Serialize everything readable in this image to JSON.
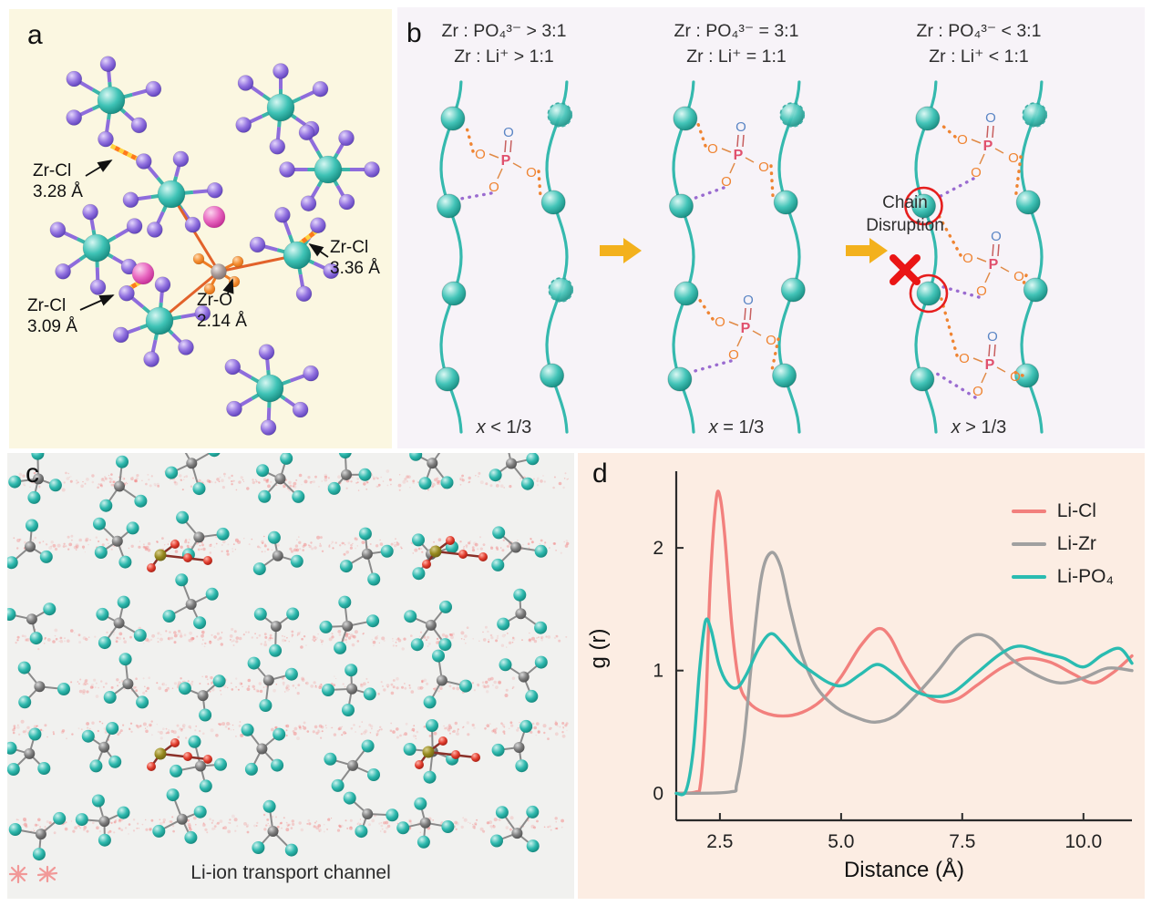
{
  "panels": {
    "a": {
      "label": "a",
      "annotations": [
        {
          "label": "Zr-Cl",
          "distance": "3.28 Å"
        },
        {
          "label": "Zr-Cl",
          "distance": "3.36 Å"
        },
        {
          "label": "Zr-Cl",
          "distance": "3.09 Å"
        },
        {
          "label": "Zr-O",
          "distance": "2.14 Å"
        }
      ]
    },
    "b": {
      "label": "b",
      "p_label": "P",
      "o_label": "O",
      "columns": [
        {
          "header_line1": "Zr : PO₄³⁻ > 3:1",
          "header_line2": "Zr : Li⁺ > 1:1",
          "footer_var": "x",
          "footer_rest": " < 1/3"
        },
        {
          "header_line1": "Zr : PO₄³⁻ = 3:1",
          "header_line2": "Zr : Li⁺ = 1:1",
          "footer_var": "x",
          "footer_rest": " = 1/3"
        },
        {
          "header_line1": "Zr : PO₄³⁻ < 3:1",
          "header_line2": "Zr : Li⁺ < 1:1",
          "footer_var": "x",
          "footer_rest": " > 1/3"
        }
      ],
      "disruption_label_line1": "Chain",
      "disruption_label_line2": "Disruption"
    },
    "c": {
      "label": "c",
      "caption": "Li-ion transport channel"
    },
    "d": {
      "label": "d"
    }
  },
  "chart_data": {
    "type": "line",
    "title": "",
    "xlabel": "Distance (Å)",
    "ylabel": "g (r)",
    "xlim": [
      1.6,
      11.0
    ],
    "ylim": [
      -0.22,
      2.58
    ],
    "xticks": [
      2.5,
      5.0,
      7.5,
      10.0
    ],
    "xtick_labels": [
      "2.5",
      "5.0",
      "7.5",
      "10.0"
    ],
    "yticks": [
      0,
      1,
      2
    ],
    "ytick_labels": [
      "0",
      "1",
      "2"
    ],
    "grid": false,
    "legend_position": "top-right",
    "series": [
      {
        "name": "Li-Cl",
        "color": "#f2807d",
        "points": [
          [
            1.6,
            0
          ],
          [
            2.0,
            0.01
          ],
          [
            2.1,
            0.08
          ],
          [
            2.2,
            0.6
          ],
          [
            2.3,
            1.7
          ],
          [
            2.42,
            2.38
          ],
          [
            2.5,
            2.42
          ],
          [
            2.6,
            2.1
          ],
          [
            2.75,
            1.35
          ],
          [
            2.9,
            0.9
          ],
          [
            3.1,
            0.74
          ],
          [
            3.4,
            0.66
          ],
          [
            3.8,
            0.63
          ],
          [
            4.2,
            0.66
          ],
          [
            4.6,
            0.76
          ],
          [
            5.0,
            0.95
          ],
          [
            5.4,
            1.2
          ],
          [
            5.75,
            1.34
          ],
          [
            6.0,
            1.28
          ],
          [
            6.3,
            1.05
          ],
          [
            6.65,
            0.84
          ],
          [
            7.0,
            0.75
          ],
          [
            7.4,
            0.77
          ],
          [
            7.8,
            0.88
          ],
          [
            8.3,
            1.02
          ],
          [
            8.8,
            1.1
          ],
          [
            9.3,
            1.07
          ],
          [
            9.8,
            0.97
          ],
          [
            10.2,
            0.9
          ],
          [
            10.6,
            0.98
          ],
          [
            11.0,
            1.12
          ]
        ]
      },
      {
        "name": "Li-Zr",
        "color": "#a0a0a0",
        "points": [
          [
            1.6,
            0
          ],
          [
            2.7,
            0.01
          ],
          [
            2.85,
            0.08
          ],
          [
            3.0,
            0.45
          ],
          [
            3.15,
            1.05
          ],
          [
            3.35,
            1.75
          ],
          [
            3.55,
            1.96
          ],
          [
            3.75,
            1.85
          ],
          [
            3.95,
            1.5
          ],
          [
            4.2,
            1.12
          ],
          [
            4.5,
            0.86
          ],
          [
            4.9,
            0.7
          ],
          [
            5.3,
            0.62
          ],
          [
            5.7,
            0.58
          ],
          [
            6.1,
            0.63
          ],
          [
            6.5,
            0.78
          ],
          [
            7.0,
            1.0
          ],
          [
            7.4,
            1.2
          ],
          [
            7.75,
            1.29
          ],
          [
            8.1,
            1.26
          ],
          [
            8.5,
            1.1
          ],
          [
            9.0,
            0.97
          ],
          [
            9.5,
            0.9
          ],
          [
            10.0,
            0.94
          ],
          [
            10.5,
            1.02
          ],
          [
            11.0,
            1.0
          ]
        ]
      },
      {
        "name": "Li-PO₄",
        "color": "#2abcb1",
        "points": [
          [
            1.6,
            0
          ],
          [
            1.8,
            0.02
          ],
          [
            1.95,
            0.35
          ],
          [
            2.08,
            1.0
          ],
          [
            2.2,
            1.4
          ],
          [
            2.32,
            1.33
          ],
          [
            2.48,
            1.05
          ],
          [
            2.65,
            0.9
          ],
          [
            2.85,
            0.86
          ],
          [
            3.05,
            0.97
          ],
          [
            3.3,
            1.18
          ],
          [
            3.55,
            1.3
          ],
          [
            3.8,
            1.22
          ],
          [
            4.1,
            1.08
          ],
          [
            4.4,
            0.99
          ],
          [
            4.75,
            0.9
          ],
          [
            5.05,
            0.88
          ],
          [
            5.4,
            0.97
          ],
          [
            5.75,
            1.05
          ],
          [
            6.1,
            0.97
          ],
          [
            6.5,
            0.84
          ],
          [
            6.9,
            0.79
          ],
          [
            7.3,
            0.82
          ],
          [
            7.8,
            0.98
          ],
          [
            8.3,
            1.14
          ],
          [
            8.7,
            1.2
          ],
          [
            9.2,
            1.14
          ],
          [
            9.6,
            1.1
          ],
          [
            10.0,
            1.03
          ],
          [
            10.4,
            1.13
          ],
          [
            10.75,
            1.18
          ],
          [
            11.0,
            1.06
          ]
        ]
      }
    ]
  }
}
